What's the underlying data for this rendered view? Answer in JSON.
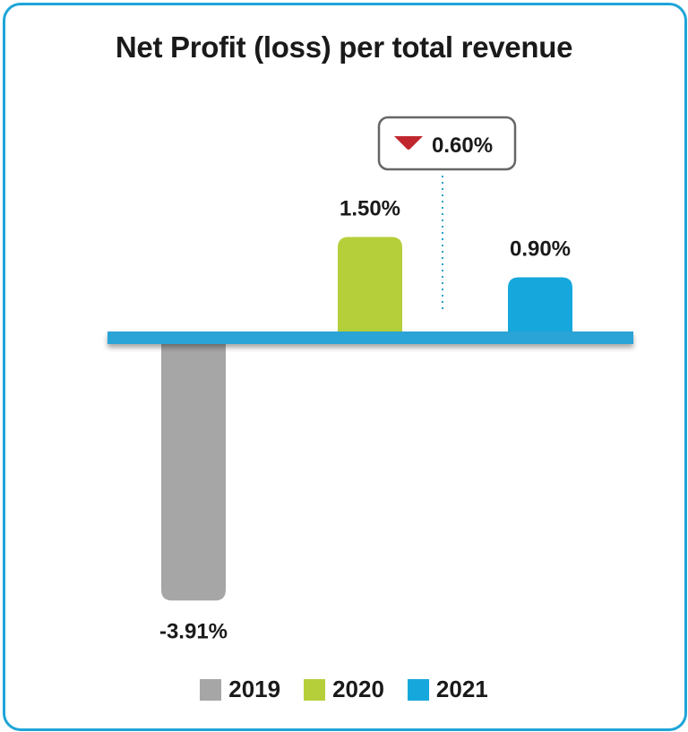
{
  "chart_data": {
    "type": "bar",
    "title": "Net Profit (loss) per total revenue",
    "categories": [
      "2019",
      "2020",
      "2021"
    ],
    "values": [
      -3.91,
      1.5,
      0.9
    ],
    "value_labels": [
      "-3.91%",
      "1.50%",
      "0.90%"
    ],
    "colors": [
      "#a6a6a6",
      "#b5cf3a",
      "#16a8dc"
    ],
    "baseline_color": "#2aa3d6",
    "legend": {
      "position": "bottom",
      "entries": [
        "2019",
        "2020",
        "2021"
      ]
    },
    "annotation": {
      "text": "0.60%",
      "direction": "down",
      "icon": "down-triangle-icon",
      "icon_color": "#c0262d",
      "between": [
        "2020",
        "2021"
      ]
    },
    "grid": false
  }
}
